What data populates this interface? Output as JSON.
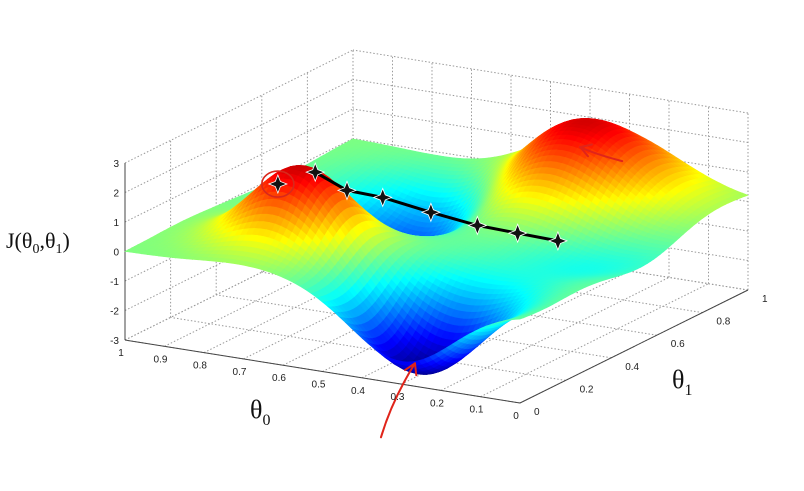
{
  "chart_data": {
    "type": "surface",
    "title": "",
    "zlabel": {
      "base": "J(",
      "p1": "θ",
      "s1": "0",
      "comma": ",",
      "p2": "θ",
      "s2": "1",
      "close": ")"
    },
    "xlabel": {
      "sym": "θ",
      "sub": "0"
    },
    "ylabel": {
      "sym": "θ",
      "sub": "1"
    },
    "xlim": [
      0,
      1
    ],
    "ylim": [
      0,
      1
    ],
    "zlim": [
      -3,
      3
    ],
    "x_ticks": [
      "1",
      "0.9",
      "0.8",
      "0.7",
      "0.6",
      "0.5",
      "0.4",
      "0.3",
      "0.2",
      "0.1",
      "0"
    ],
    "y_ticks": [
      "0",
      "0.2",
      "0.4",
      "0.6",
      "0.8",
      "1"
    ],
    "z_ticks": [
      "3",
      "2",
      "1",
      "0",
      "-1",
      "-2",
      "-3"
    ],
    "grid": true,
    "colormap": "jet",
    "surface": {
      "description_of_terms": "sum of gaussian bumps in data units",
      "terms": [
        {
          "amp": 2.6,
          "cx": 0.7,
          "cy": 0.25,
          "s": 0.11
        },
        {
          "amp": 2.7,
          "cx": 0.35,
          "cy": 0.85,
          "s": 0.17
        },
        {
          "amp": -3.0,
          "cx": 0.3,
          "cy": 0.1,
          "s": 0.13
        },
        {
          "amp": -2.1,
          "cx": 0.65,
          "cy": 0.7,
          "s": 0.15
        },
        {
          "amp": -0.8,
          "cx": 0.15,
          "cy": 0.55,
          "s": 0.15
        }
      ]
    },
    "gradient_descent_path": {
      "name": "gradient descent steps",
      "points": [
        {
          "x": 0.68,
          "y": 0.28,
          "z": 2.3
        },
        {
          "x": 0.64,
          "y": 0.35,
          "z": 1.5
        },
        {
          "x": 0.59,
          "y": 0.42,
          "z": 1.1
        },
        {
          "x": 0.52,
          "y": 0.51,
          "z": 0.4
        },
        {
          "x": 0.46,
          "y": 0.61,
          "z": -0.3
        },
        {
          "x": 0.41,
          "y": 0.7,
          "z": -0.8
        },
        {
          "x": 0.36,
          "y": 0.79,
          "z": -1.3
        }
      ],
      "circled_start": {
        "x": 0.74,
        "y": 0.22,
        "z": 2.0
      }
    },
    "annotations": [
      {
        "name": "arrow-to-local-minimum",
        "target": {
          "x": 0.36,
          "y": 0.8
        }
      },
      {
        "name": "arrow-to-global-minimum",
        "target": {
          "x": 0.32,
          "y": 0.12
        }
      }
    ],
    "colors": {
      "path": "#000000",
      "arrow": "#e0241a",
      "circle": "#d8281c",
      "grid": "#9a9a9a"
    }
  }
}
